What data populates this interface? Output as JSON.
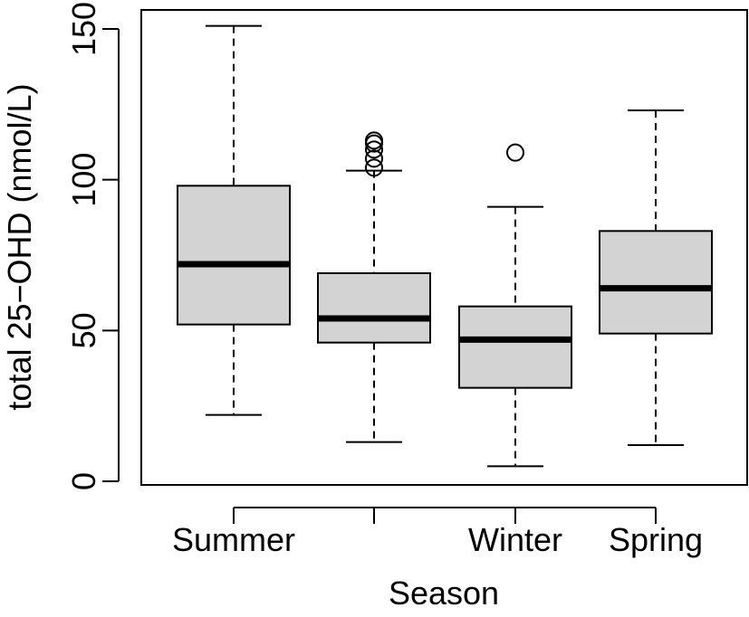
{
  "chart_data": {
    "type": "boxplot",
    "title": "",
    "xlabel": "Season",
    "ylabel": "total 25−OHD (nmol/L)",
    "ylim": [
      0,
      150
    ],
    "yticks": [
      0,
      50,
      100,
      150
    ],
    "categories": [
      "Summer",
      "",
      "Winter",
      "Spring"
    ],
    "boxes": [
      {
        "whisker_low": 22,
        "q1": 52,
        "median": 72,
        "q3": 98,
        "whisker_high": 151,
        "outliers": []
      },
      {
        "whisker_low": 13,
        "q1": 46,
        "median": 54,
        "q3": 69,
        "whisker_high": 103,
        "outliers": [
          104,
          107,
          110,
          112,
          113
        ]
      },
      {
        "whisker_low": 5,
        "q1": 31,
        "median": 47,
        "q3": 58,
        "whisker_high": 91,
        "outliers": [
          109
        ]
      },
      {
        "whisker_low": 12,
        "q1": 49,
        "median": 64,
        "q3": 83,
        "whisker_high": 123,
        "outliers": []
      }
    ],
    "grid": false,
    "box_fill": "#d3d3d3",
    "line_color": "#000000"
  }
}
